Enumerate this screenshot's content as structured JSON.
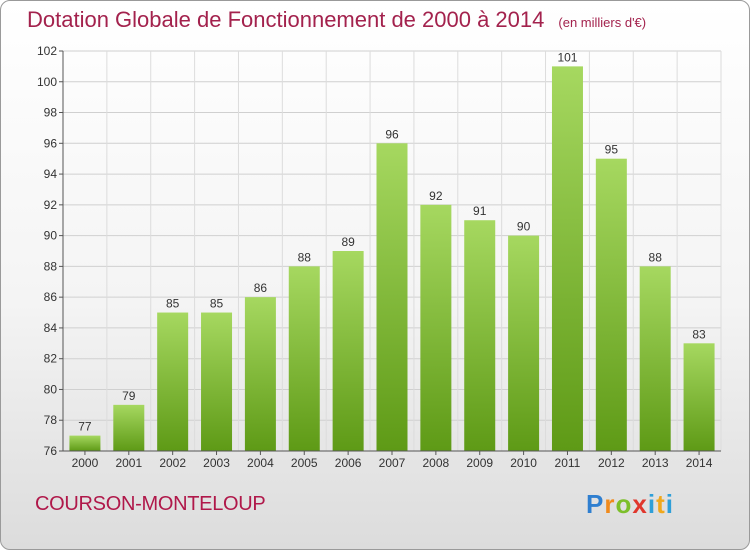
{
  "header": {
    "title": "Dotation Globale de Fonctionnement de 2000 à 2014",
    "units": "(en milliers d'€)"
  },
  "footer": {
    "town": "COURSON-MONTELOUP",
    "logo": "Proxiti"
  },
  "colors": {
    "title": "#a3224d",
    "bar_top": "#a6d860",
    "bar_bottom": "#5e9a16"
  },
  "chart_data": {
    "type": "bar",
    "title": "Dotation Globale de Fonctionnement de 2000 à 2014",
    "categories": [
      "2000",
      "2001",
      "2002",
      "2003",
      "2004",
      "2005",
      "2006",
      "2007",
      "2008",
      "2009",
      "2010",
      "2011",
      "2012",
      "2013",
      "2014"
    ],
    "values": [
      77,
      79,
      85,
      85,
      86,
      88,
      89,
      96,
      92,
      91,
      90,
      101,
      95,
      88,
      83
    ],
    "ylim": [
      76,
      102
    ],
    "yticks": [
      76,
      78,
      80,
      82,
      84,
      86,
      88,
      90,
      92,
      94,
      96,
      98,
      100,
      102
    ],
    "grid": true,
    "xlabel": "",
    "ylabel": ""
  }
}
